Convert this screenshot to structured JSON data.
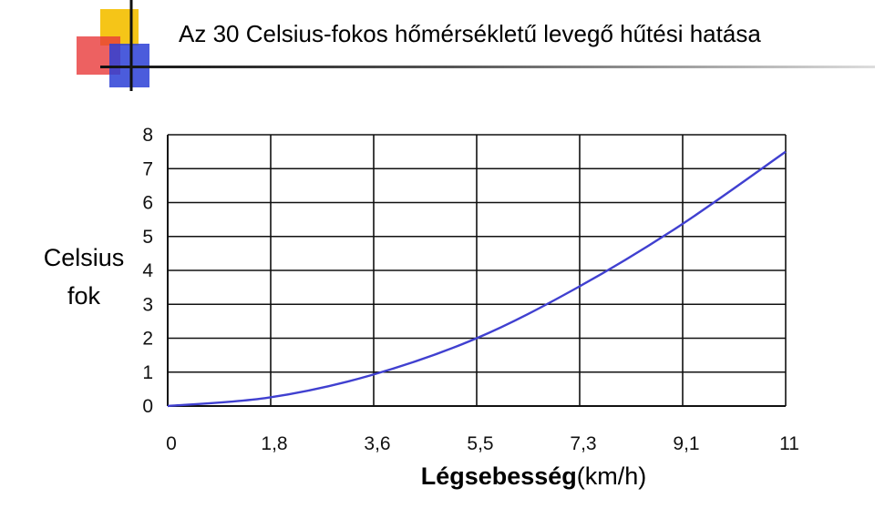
{
  "header": {
    "title": "Az 30 Celsius-fokos hőmérsékletű levegő hűtési hatása",
    "logo_colors": {
      "yellow": "#f5c518",
      "red": "#e83a3a",
      "blue": "#2b3fd6"
    }
  },
  "chart_data": {
    "type": "line",
    "title": "Az 30 Celsius-fokos hőmérsékletű levegő hűtési hatása",
    "xlabel_bold": "Légsebesség",
    "xlabel_unit": "(km/h)",
    "ylabel_line1": "Celsius",
    "ylabel_line2": "fok",
    "x_ticks": [
      "0",
      "1,8",
      "3,6",
      "5,5",
      "7,3",
      "9,1",
      "11"
    ],
    "x_tick_values": [
      0,
      1.8,
      3.6,
      5.5,
      7.3,
      9.1,
      11
    ],
    "y_ticks": [
      "0",
      "1",
      "2",
      "3",
      "4",
      "5",
      "6",
      "7",
      "8"
    ],
    "xlim": [
      0,
      11
    ],
    "ylim": [
      0,
      8
    ],
    "grid": true,
    "series": [
      {
        "color": "#4040d0",
        "x": [
          0,
          1.8,
          3.6,
          5.5,
          7.3,
          9.1,
          11
        ],
        "y": [
          0,
          0.25,
          0.9,
          2.0,
          3.5,
          5.3,
          7.5
        ]
      }
    ]
  }
}
